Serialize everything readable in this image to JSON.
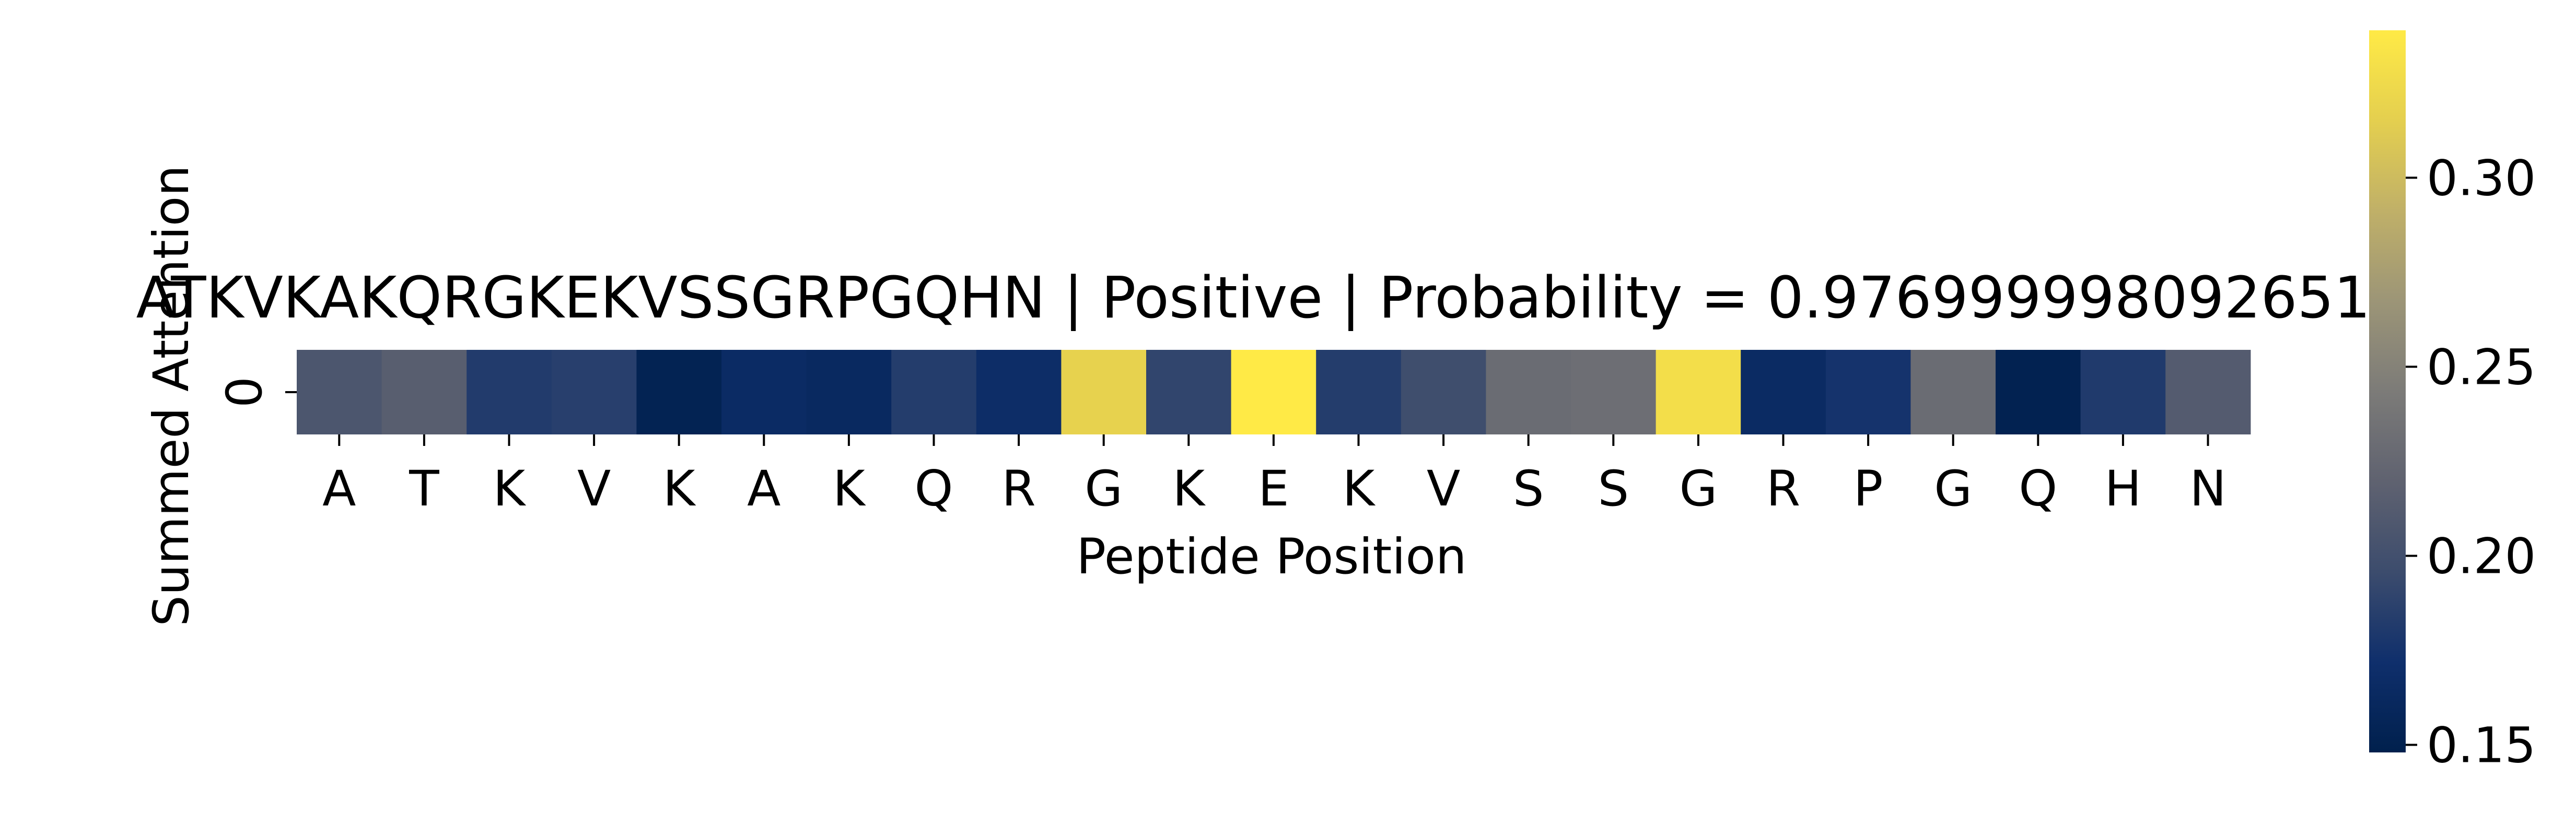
{
  "chart_data": {
    "type": "heatmap",
    "title": "ATKVKAKQRGKEKVSSGRPGQHN | Positive | Probability = 0.9769999980926514",
    "xlabel": "Peptide Position",
    "ylabel": "Summed Attention",
    "row_labels": [
      "0"
    ],
    "categories": [
      "A",
      "T",
      "K",
      "V",
      "K",
      "A",
      "K",
      "Q",
      "R",
      "G",
      "K",
      "E",
      "K",
      "V",
      "S",
      "S",
      "G",
      "R",
      "P",
      "G",
      "Q",
      "H",
      "N"
    ],
    "values": [
      0.207,
      0.215,
      0.182,
      0.185,
      0.153,
      0.166,
      0.163,
      0.183,
      0.168,
      0.318,
      0.19,
      0.339,
      0.183,
      0.198,
      0.229,
      0.231,
      0.328,
      0.165,
      0.175,
      0.229,
      0.151,
      0.181,
      0.212
    ],
    "colorbar": {
      "colormap": "cividis",
      "range": [
        0.148,
        0.339
      ],
      "ticks": [
        0.15,
        0.2,
        0.25,
        0.3
      ],
      "tick_labels": [
        "0.15",
        "0.20",
        "0.25",
        "0.30"
      ]
    }
  }
}
